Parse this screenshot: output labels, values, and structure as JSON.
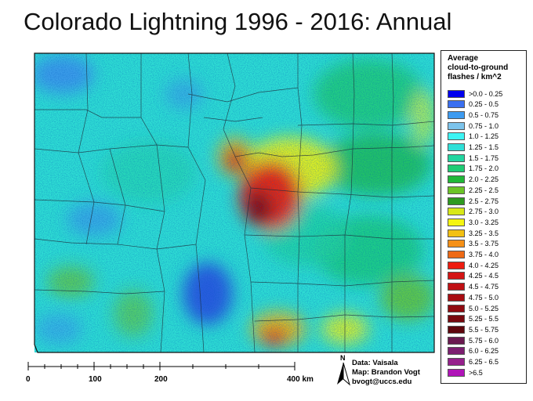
{
  "title": "Colorado Lightning 1996 - 2016:  Annual",
  "legend": {
    "title": "Average\ncloud-to-ground\nflashes / km^2",
    "items": [
      {
        "label": ">0.0 - 0.25",
        "color": "#0000ee"
      },
      {
        "label": "0.25 - 0.5",
        "color": "#3a6ff0"
      },
      {
        "label": "0.5 - 0.75",
        "color": "#3d9bf0"
      },
      {
        "label": "0.75 - 1.0",
        "color": "#7cc4ec"
      },
      {
        "label": "1.0 - 1.25",
        "color": "#3cf4f4"
      },
      {
        "label": "1.25 - 1.5",
        "color": "#30e0d8"
      },
      {
        "label": "1.5 - 1.75",
        "color": "#22d6a0"
      },
      {
        "label": "1.75 - 2.0",
        "color": "#1dcc74"
      },
      {
        "label": "2.0 - 2.25",
        "color": "#20b838"
      },
      {
        "label": "2.25 - 2.5",
        "color": "#6cc428"
      },
      {
        "label": "2.5 - 2.75",
        "color": "#2e9a20"
      },
      {
        "label": "2.75 - 3.0",
        "color": "#d8e818"
      },
      {
        "label": "3.0 - 3.25",
        "color": "#f5f512"
      },
      {
        "label": "3.25 - 3.5",
        "color": "#f2c012"
      },
      {
        "label": "3.5 - 3.75",
        "color": "#f59016"
      },
      {
        "label": "3.75 - 4.0",
        "color": "#ee6a16"
      },
      {
        "label": "4.0 - 4.25",
        "color": "#ee1c10"
      },
      {
        "label": "4.25 - 4.5",
        "color": "#d41414"
      },
      {
        "label": "4.5 - 4.75",
        "color": "#c01014"
      },
      {
        "label": "4.75 - 5.0",
        "color": "#a80c12"
      },
      {
        "label": "5.0 - 5.25",
        "color": "#900a10"
      },
      {
        "label": "5.25 - 5.5",
        "color": "#78080e"
      },
      {
        "label": "5.5 - 5.75",
        "color": "#5e060c"
      },
      {
        "label": "5.75 - 6.0",
        "color": "#6a1a50"
      },
      {
        "label": "6.0 - 6.25",
        "color": "#7c1e70"
      },
      {
        "label": "6.25 - 6.5",
        "color": "#96208c"
      },
      {
        "label": ">6.5",
        "color": "#b014b8"
      }
    ]
  },
  "credits": {
    "data": "Data: Vaisala",
    "map": "Map: Brandon Vogt",
    "email": "bvogt@uccs.edu"
  },
  "scale": {
    "ticks": [
      "0",
      "100",
      "200",
      "400 km"
    ]
  },
  "north_label": "N"
}
